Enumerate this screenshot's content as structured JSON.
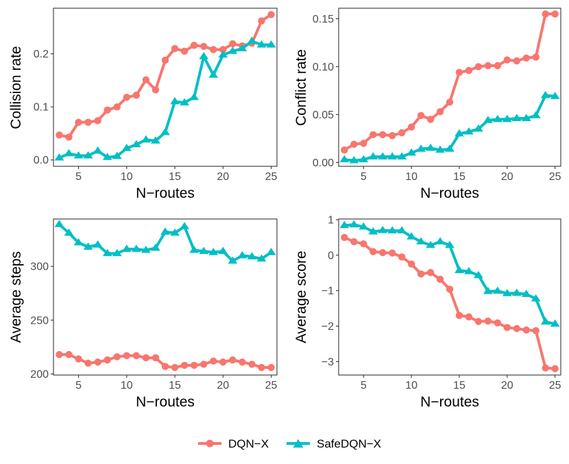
{
  "chart_data": [
    {
      "type": "line",
      "xlabel": "N−routes",
      "ylabel": "Collision rate",
      "xlim": [
        2.4,
        25.6
      ],
      "ylim": [
        -0.012,
        0.286
      ],
      "xticks": [
        5,
        10,
        15,
        20,
        25
      ],
      "yticks": [
        0.0,
        0.1,
        0.2
      ],
      "ytick_labels": [
        "0.0",
        "0.1",
        "0.2"
      ],
      "grid": false,
      "x": [
        3,
        4,
        5,
        6,
        7,
        8,
        9,
        10,
        11,
        12,
        13,
        14,
        15,
        16,
        17,
        18,
        19,
        20,
        21,
        22,
        23,
        24,
        25
      ],
      "series": [
        {
          "name": "DQN−X",
          "values": [
            0.047,
            0.043,
            0.071,
            0.071,
            0.074,
            0.094,
            0.1,
            0.118,
            0.122,
            0.151,
            0.132,
            0.188,
            0.21,
            0.205,
            0.216,
            0.214,
            0.208,
            0.208,
            0.219,
            0.215,
            0.22,
            0.262,
            0.274
          ]
        },
        {
          "name": "SafeDQN−X",
          "values": [
            0.004,
            0.012,
            0.008,
            0.008,
            0.017,
            0.005,
            0.007,
            0.022,
            0.029,
            0.038,
            0.036,
            0.052,
            0.11,
            0.108,
            0.118,
            0.195,
            0.16,
            0.198,
            0.205,
            0.21,
            0.224,
            0.217,
            0.217
          ]
        }
      ]
    },
    {
      "type": "line",
      "xlabel": "N−routes",
      "ylabel": "Conflict rate",
      "xlim": [
        2.4,
        25.6
      ],
      "ylim": [
        -0.004,
        0.161
      ],
      "xticks": [
        5,
        10,
        15,
        20,
        25
      ],
      "yticks": [
        0.0,
        0.05,
        0.1,
        0.15
      ],
      "ytick_labels": [
        "0.00",
        "0.05",
        "0.10",
        "0.15"
      ],
      "grid": false,
      "x": [
        3,
        4,
        5,
        6,
        7,
        8,
        9,
        10,
        11,
        12,
        13,
        14,
        15,
        16,
        17,
        18,
        19,
        20,
        21,
        22,
        23,
        24,
        25
      ],
      "series": [
        {
          "name": "DQN−X",
          "values": [
            0.013,
            0.019,
            0.02,
            0.029,
            0.029,
            0.028,
            0.031,
            0.037,
            0.049,
            0.045,
            0.053,
            0.063,
            0.094,
            0.096,
            0.1,
            0.101,
            0.101,
            0.107,
            0.106,
            0.109,
            0.11,
            0.155,
            0.155
          ]
        },
        {
          "name": "SafeDQN−X",
          "values": [
            0.003,
            0.002,
            0.003,
            0.006,
            0.006,
            0.006,
            0.006,
            0.01,
            0.014,
            0.015,
            0.013,
            0.014,
            0.03,
            0.032,
            0.035,
            0.044,
            0.045,
            0.045,
            0.046,
            0.046,
            0.049,
            0.07,
            0.069
          ]
        }
      ]
    },
    {
      "type": "line",
      "xlabel": "N−routes",
      "ylabel": "Average steps",
      "xlim": [
        2.4,
        25.6
      ],
      "ylim": [
        199,
        344
      ],
      "xticks": [
        5,
        10,
        15,
        20,
        25
      ],
      "yticks": [
        200,
        250,
        300
      ],
      "ytick_labels": [
        "200",
        "250",
        "300"
      ],
      "grid": false,
      "x": [
        3,
        4,
        5,
        6,
        7,
        8,
        9,
        10,
        11,
        12,
        13,
        14,
        15,
        16,
        17,
        18,
        19,
        20,
        21,
        22,
        23,
        24,
        25
      ],
      "series": [
        {
          "name": "DQN−X",
          "values": [
            218,
            218,
            214,
            210,
            211,
            213,
            216,
            217,
            217,
            215,
            215,
            207,
            206,
            208,
            208,
            209,
            212,
            211,
            213,
            211,
            209,
            206,
            206
          ]
        },
        {
          "name": "SafeDQN−X",
          "values": [
            339,
            331,
            322,
            318,
            320,
            312,
            312,
            316,
            316,
            315,
            317,
            332,
            331,
            337,
            315,
            314,
            313,
            314,
            305,
            310,
            309,
            307,
            313
          ]
        }
      ]
    },
    {
      "type": "line",
      "xlabel": "N−routes",
      "ylabel": "Average score",
      "xlim": [
        2.4,
        25.6
      ],
      "ylim": [
        -3.38,
        1.02
      ],
      "xticks": [
        5,
        10,
        15,
        20,
        25
      ],
      "yticks": [
        -3,
        -2,
        -1,
        0,
        1
      ],
      "ytick_labels": [
        "−3",
        "−2",
        "−1",
        "0",
        "1"
      ],
      "grid": false,
      "x": [
        3,
        4,
        5,
        6,
        7,
        8,
        9,
        10,
        11,
        12,
        13,
        14,
        15,
        16,
        17,
        18,
        19,
        20,
        21,
        22,
        23,
        24,
        25
      ],
      "series": [
        {
          "name": "DQN−X",
          "values": [
            0.5,
            0.38,
            0.32,
            0.1,
            0.07,
            0.06,
            -0.05,
            -0.25,
            -0.53,
            -0.49,
            -0.68,
            -0.96,
            -1.7,
            -1.74,
            -1.87,
            -1.86,
            -1.91,
            -2.04,
            -2.07,
            -2.11,
            -2.13,
            -3.18,
            -3.2
          ]
        },
        {
          "name": "SafeDQN−X",
          "values": [
            0.84,
            0.86,
            0.8,
            0.66,
            0.7,
            0.69,
            0.69,
            0.52,
            0.38,
            0.28,
            0.38,
            0.28,
            -0.43,
            -0.46,
            -0.57,
            -1.02,
            -1.01,
            -1.08,
            -1.07,
            -1.1,
            -1.23,
            -1.88,
            -1.94
          ]
        }
      ]
    }
  ],
  "legend": {
    "placement": "bottom-center",
    "items": [
      {
        "label": "DQN−X",
        "color": "#F8766D",
        "marker": "circle"
      },
      {
        "label": "SafeDQN−X",
        "color": "#00BFC4",
        "marker": "triangle"
      }
    ]
  },
  "colors": {
    "series_1": "#F8766D",
    "series_2": "#00BFC4"
  }
}
